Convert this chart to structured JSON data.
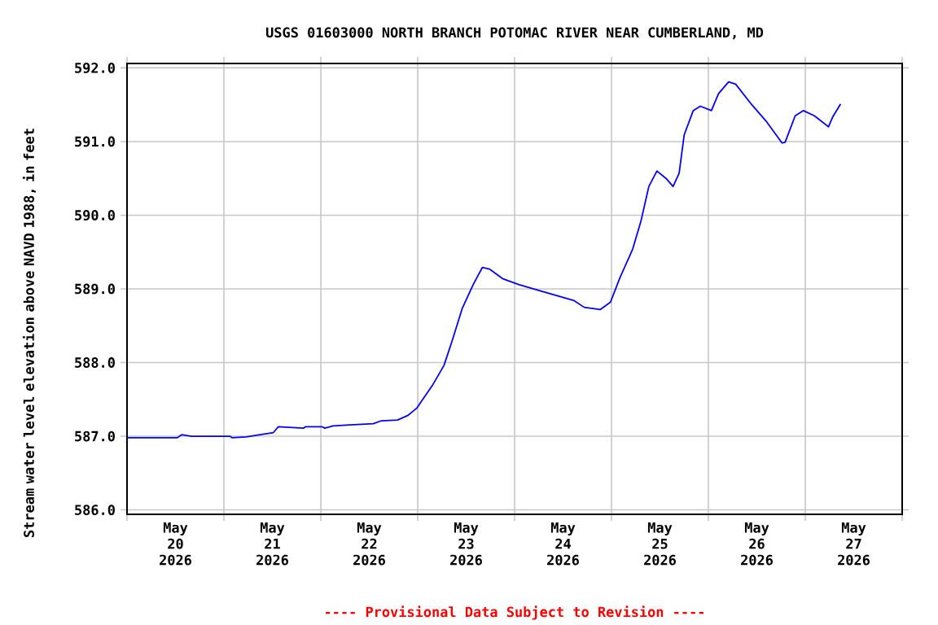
{
  "chart_data": {
    "type": "line",
    "title": "USGS 01603000 NORTH BRANCH POTOMAC RIVER NEAR CUMBERLAND, MD",
    "ylabel": "Stream water level elevation above NAVD 1988, in feet",
    "annotations": [
      "---- Provisional Data Subject to Revision ----"
    ],
    "xlim": [
      "2026-05-20T00:00",
      "2026-05-28T00:00"
    ],
    "xticks": [
      {
        "value": "2026-05-20T00:00",
        "label": null
      },
      {
        "value": "2026-05-21T00:00",
        "label": null
      },
      {
        "value": "2026-05-22T00:00",
        "label": null
      },
      {
        "value": "2026-05-23T00:00",
        "label": null
      },
      {
        "value": "2026-05-24T00:00",
        "label": null
      },
      {
        "value": "2026-05-25T00:00",
        "label": null
      },
      {
        "value": "2026-05-26T00:00",
        "label": null
      },
      {
        "value": "2026-05-27T00:00",
        "label": null
      },
      {
        "value": "2026-05-28T00:00",
        "label": null
      },
      {
        "value": "2026-05-20T12:00",
        "label": "May 20 2026"
      },
      {
        "value": "2026-05-21T12:00",
        "label": "May 21 2026"
      },
      {
        "value": "2026-05-22T12:00",
        "label": "May 22 2026"
      },
      {
        "value": "2026-05-23T12:00",
        "label": "May 23 2026"
      },
      {
        "value": "2026-05-24T12:00",
        "label": "May 24 2026"
      },
      {
        "value": "2026-05-25T12:00",
        "label": "May 25 2026"
      },
      {
        "value": "2026-05-26T12:00",
        "label": "May 26 2026"
      },
      {
        "value": "2026-05-27T12:00",
        "label": "May 27 2026"
      }
    ],
    "ylim": [
      585.94,
      592.06
    ],
    "yticks": [
      {
        "value": 586,
        "label": "586.0"
      },
      {
        "value": 587,
        "label": "587.0"
      },
      {
        "value": 588,
        "label": "588.0"
      },
      {
        "value": 589,
        "label": "589.0"
      },
      {
        "value": 590,
        "label": "590.0"
      },
      {
        "value": 591,
        "label": "591.0"
      },
      {
        "value": 592,
        "label": "592.0"
      }
    ],
    "grid": true,
    "marker": "none",
    "line_style": "solid",
    "series": [
      {
        "color": "#0000ff",
        "x": [
          "2026-05-20T00:00",
          "2026-05-20T12:30",
          "2026-05-20T13:30",
          "2026-05-20T16:00",
          "2026-05-21T01:30",
          "2026-05-21T02:00",
          "2026-05-21T05:30",
          "2026-05-21T09:00",
          "2026-05-21T12:15",
          "2026-05-21T13:30",
          "2026-05-21T19:45",
          "2026-05-21T20:15",
          "2026-05-22T00:15",
          "2026-05-22T01:00",
          "2026-05-22T03:00",
          "2026-05-22T06:15",
          "2026-05-22T13:00",
          "2026-05-22T15:00",
          "2026-05-22T19:00",
          "2026-05-22T21:30",
          "2026-05-22T23:45",
          "2026-05-23T01:00",
          "2026-05-23T03:45",
          "2026-05-23T06:30",
          "2026-05-23T08:30",
          "2026-05-23T11:00",
          "2026-05-23T13:45",
          "2026-05-23T16:00",
          "2026-05-23T17:45",
          "2026-05-23T21:00",
          "2026-05-24T01:00",
          "2026-05-24T06:30",
          "2026-05-24T14:45",
          "2026-05-24T17:15",
          "2026-05-24T21:15",
          "2026-05-24T23:45",
          "2026-05-25T02:00",
          "2026-05-25T05:15",
          "2026-05-25T07:15",
          "2026-05-25T09:15",
          "2026-05-25T11:15",
          "2026-05-25T13:30",
          "2026-05-25T15:15",
          "2026-05-25T16:45",
          "2026-05-25T18:00",
          "2026-05-25T20:15",
          "2026-05-25T22:00",
          "2026-05-26T00:45",
          "2026-05-26T02:30",
          "2026-05-26T05:00",
          "2026-05-26T06:45",
          "2026-05-26T10:45",
          "2026-05-26T14:15",
          "2026-05-26T18:15",
          "2026-05-26T19:00",
          "2026-05-26T21:30",
          "2026-05-26T23:30",
          "2026-05-27T02:15",
          "2026-05-27T05:45",
          "2026-05-27T06:45",
          "2026-05-27T08:45"
        ],
        "values": [
          586.98,
          586.98,
          587.02,
          587.0,
          587.0,
          586.98,
          586.99,
          587.02,
          587.05,
          587.13,
          587.11,
          587.13,
          587.13,
          587.11,
          587.14,
          587.15,
          587.17,
          587.21,
          587.22,
          587.28,
          587.38,
          587.48,
          587.7,
          587.96,
          588.29,
          588.73,
          589.06,
          589.29,
          589.27,
          589.14,
          589.06,
          588.97,
          588.84,
          588.75,
          588.72,
          588.82,
          589.14,
          589.54,
          589.91,
          590.39,
          590.6,
          590.5,
          590.39,
          590.57,
          591.09,
          591.42,
          591.48,
          591.42,
          591.65,
          591.81,
          591.78,
          591.5,
          591.28,
          590.98,
          590.99,
          591.35,
          591.42,
          591.35,
          591.2,
          591.33,
          591.51
        ]
      }
    ]
  }
}
